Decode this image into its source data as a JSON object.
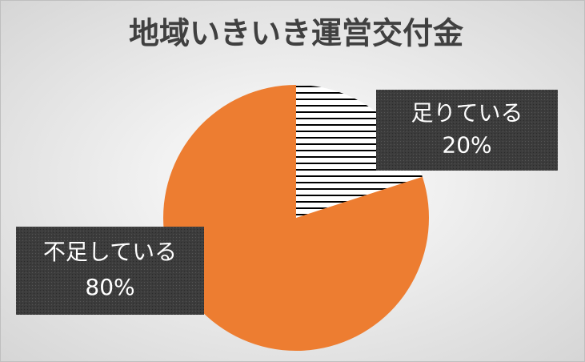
{
  "chart_data": {
    "type": "pie",
    "title": "地域いきいき運営交付金",
    "categories": [
      "足りている",
      "不足している"
    ],
    "values": [
      20,
      80
    ],
    "value_labels": [
      "20%",
      "80%"
    ],
    "colors": [
      "#000000",
      "#ed7d31"
    ]
  }
}
